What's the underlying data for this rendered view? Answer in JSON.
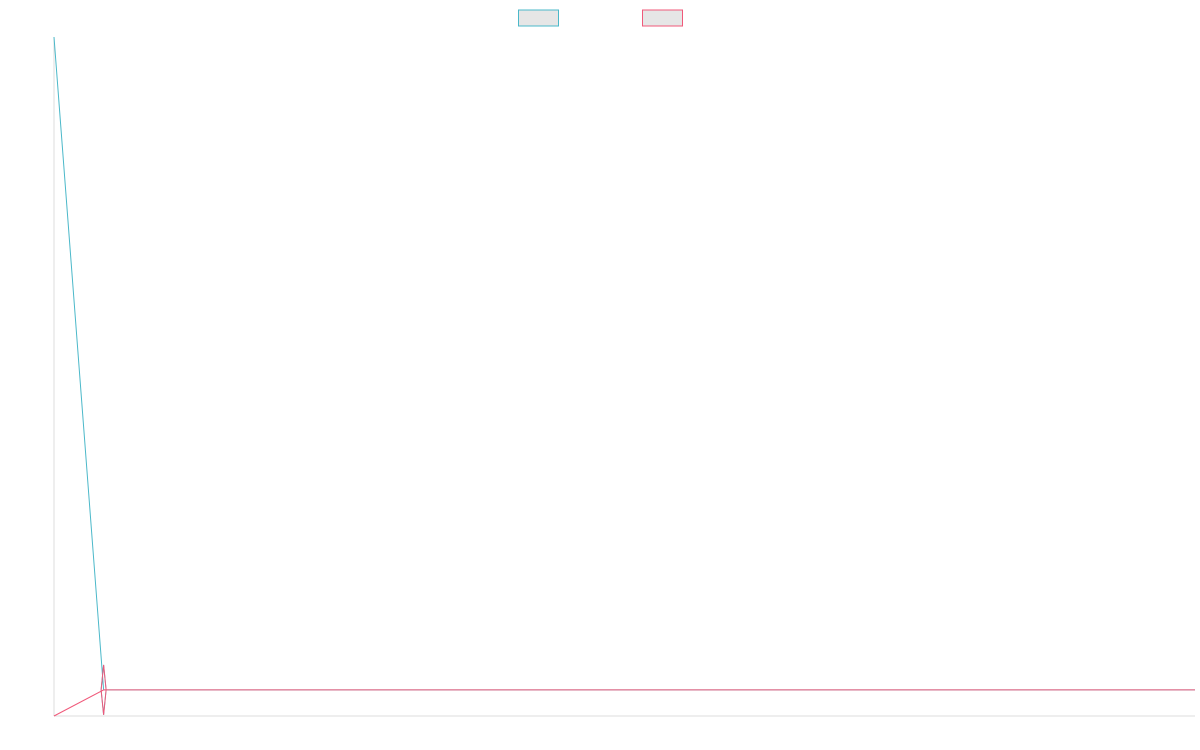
{
  "chart_data": {
    "type": "line",
    "x": [
      0,
      1,
      2,
      3,
      4,
      5,
      6,
      7,
      8,
      9,
      10,
      11,
      12,
      13,
      14,
      15,
      16,
      17,
      18,
      19,
      20,
      21,
      22,
      23
    ],
    "series": [
      {
        "color": "#4bb8c9",
        "legend_fill": "#e6e6e6",
        "values": [
          1000,
          0,
          0,
          0,
          0,
          0,
          0,
          0,
          0,
          0,
          0,
          0,
          0,
          0,
          0,
          0,
          0,
          0,
          0,
          0,
          0,
          0,
          0,
          0
        ]
      },
      {
        "color": "#f0597a",
        "legend_fill": "#e6e6e6",
        "values": [
          -40,
          0,
          0,
          0,
          0,
          0,
          0,
          0,
          0,
          0,
          0,
          0,
          0,
          0,
          0,
          0,
          0,
          0,
          0,
          0,
          0,
          0,
          0,
          0
        ]
      }
    ],
    "xlim": [
      0,
      23
    ],
    "ylim": [
      -40,
      1000
    ],
    "grid": false,
    "legend": "top-center",
    "axis_color": "#dddddd",
    "title": "",
    "xlabel": "",
    "ylabel": ""
  }
}
